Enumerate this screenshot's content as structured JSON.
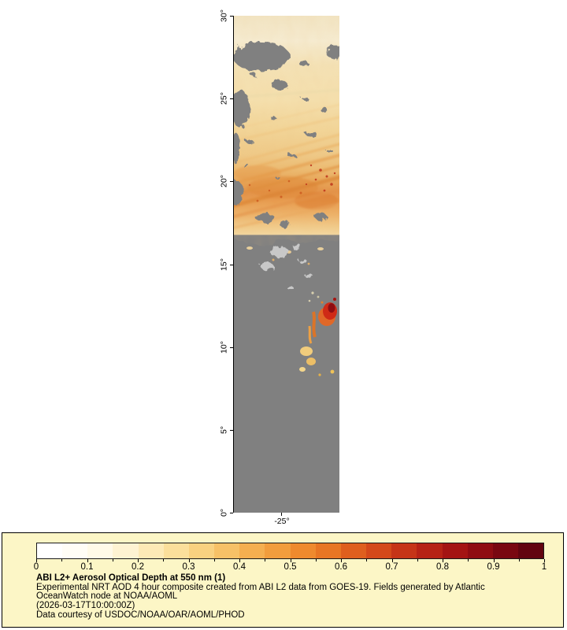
{
  "map": {
    "lat_ticks": [
      "30°",
      "25°",
      "20°",
      "15°",
      "10°",
      "5°",
      "0°"
    ],
    "lon_tick": "-25°",
    "no_data_color": "#808080",
    "cloud_color": "#c8c8c8",
    "background_color": "#ffffff"
  },
  "colorbar": {
    "tick_labels": [
      "0",
      "0.1",
      "0.2",
      "0.3",
      "0.4",
      "0.5",
      "0.6",
      "0.7",
      "0.8",
      "0.9",
      "1"
    ],
    "segment_colors": [
      "#ffffff",
      "#fffdf6",
      "#fffae8",
      "#fef3d2",
      "#fdeab6",
      "#fbdf9b",
      "#f9d180",
      "#f7c167",
      "#f5af50",
      "#f29d3d",
      "#ef8a2e",
      "#e87624",
      "#df5f1e",
      "#d4491a",
      "#c63417",
      "#b62215",
      "#a41413",
      "#8f0c12",
      "#790711",
      "#620410"
    ]
  },
  "caption": {
    "title": "ABI L2+ Aerosol Optical Depth at 550 nm (1)",
    "description": "Experimental NRT AOD 4 hour composite created from ABI L2 data from GOES-19. Fields generated by Atlantic OceanWatch node at NOAA/AOML",
    "timestamp": "(2026-03-17T10:00:00Z)",
    "credit": "Data courtesy of USDOC/NOAA/OAR/AOML/PHOD",
    "panel_bg": "#fcf6c6",
    "panel_border": "#000000"
  },
  "chart_data": {
    "type": "heatmap",
    "title": "ABI L2+ Aerosol Optical Depth at 550 nm (1)",
    "variable": "Aerosol Optical Depth at 550 nm",
    "colorbar_range": [
      0,
      1
    ],
    "colorbar_ticks": [
      0,
      0.1,
      0.2,
      0.3,
      0.4,
      0.5,
      0.6,
      0.7,
      0.8,
      0.9,
      1
    ],
    "lat_axis_ticks_deg": [
      0,
      5,
      10,
      15,
      20,
      25,
      30
    ],
    "lon_axis_tick_deg": -25,
    "legend_position": "bottom",
    "notes": "Vertical longitude strip near -25°; high AOD plume (0.2-0.6) between ~17°N and 30°N, strongest band near 19-21°N with embedded reds; gray = no retrieval below ~17°N; isolated red/orange maximum near 11-12°N; scattered light-gray cloud patches near 14-16°N"
  }
}
